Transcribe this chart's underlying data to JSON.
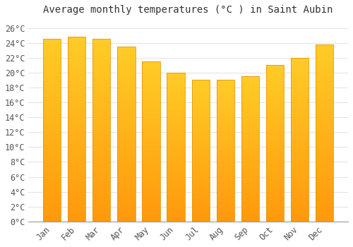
{
  "title": "Average monthly temperatures (°C ) in Saint Aubin",
  "months": [
    "Jan",
    "Feb",
    "Mar",
    "Apr",
    "May",
    "Jun",
    "Jul",
    "Aug",
    "Sep",
    "Oct",
    "Nov",
    "Dec"
  ],
  "values": [
    24.5,
    24.8,
    24.5,
    23.5,
    21.5,
    20.0,
    19.0,
    19.0,
    19.5,
    21.0,
    22.0,
    23.8
  ],
  "bar_color_top": "#FFC320",
  "bar_color_bottom": "#FFB000",
  "bar_edge_color": "#E8960A",
  "background_color": "#FFFFFF",
  "grid_color": "#DDDDDD",
  "ylim": [
    0,
    27
  ],
  "yticks": [
    0,
    2,
    4,
    6,
    8,
    10,
    12,
    14,
    16,
    18,
    20,
    22,
    24,
    26
  ],
  "title_fontsize": 10,
  "tick_fontsize": 8.5,
  "font_family": "monospace"
}
